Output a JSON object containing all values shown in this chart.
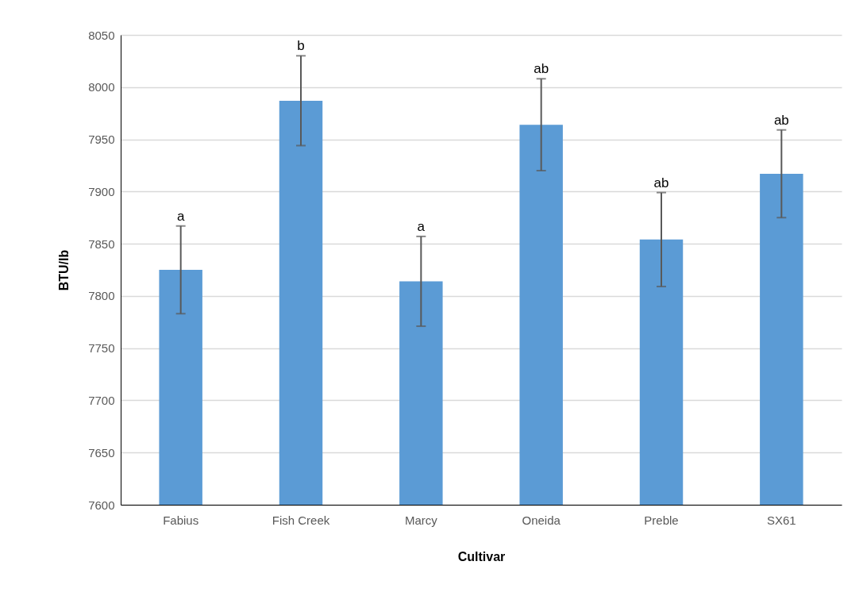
{
  "chart_data": {
    "type": "bar",
    "xlabel": "Cultivar",
    "ylabel": "BTU/lb",
    "categories": [
      "Fabius",
      "Fish Creek",
      "Marcy",
      "Oneida",
      "Preble",
      "SX61"
    ],
    "values": [
      7825,
      7987,
      7814,
      7964,
      7854,
      7917
    ],
    "errors": [
      42,
      43,
      43,
      44,
      45,
      42
    ],
    "color": "#5b9bd5",
    "ylim": [
      7600,
      8050
    ],
    "yticks": [
      7600,
      7650,
      7700,
      7750,
      7800,
      7850,
      7900,
      7950,
      8000,
      8050
    ],
    "grid": "y",
    "annotations": [
      {
        "text": "a",
        "x": "Fabius",
        "y": 7867
      },
      {
        "text": "b",
        "x": "Fish Creek",
        "y": 8030
      },
      {
        "text": "a",
        "x": "Marcy",
        "y": 7857
      },
      {
        "text": "ab",
        "x": "Oneida",
        "y": 8008
      },
      {
        "text": "ab",
        "x": "Preble",
        "y": 7899
      },
      {
        "text": "ab",
        "x": "SX61",
        "y": 7959
      }
    ]
  }
}
